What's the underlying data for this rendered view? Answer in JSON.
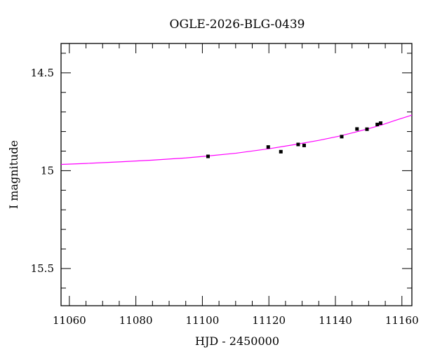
{
  "chart_data": {
    "type": "scatter",
    "title": "OGLE-2026-BLG-0439",
    "xlabel": "HJD - 2450000",
    "ylabel": "I magnitude",
    "xlim": [
      11057.5,
      11163
    ],
    "ylim": [
      15.69,
      14.35
    ],
    "y_inverted": true,
    "grid": false,
    "x_ticks": [
      11060,
      11080,
      11100,
      11120,
      11140,
      11160
    ],
    "x_tick_labels": [
      "11060",
      "11080",
      "11100",
      "11120",
      "11140",
      "11160"
    ],
    "y_ticks": [
      14.5,
      15,
      15.5
    ],
    "y_tick_labels": [
      "14.5",
      "15",
      "15.5"
    ],
    "series": [
      {
        "kind": "points",
        "color": "#000000",
        "x": [
          11101.7,
          11119.8,
          11123.6,
          11128.8,
          11130.6,
          11141.9,
          11146.5,
          11149.5,
          11152.6,
          11153.6
        ],
        "y": [
          14.927,
          14.879,
          14.903,
          14.866,
          14.871,
          14.826,
          14.787,
          14.788,
          14.764,
          14.757
        ]
      },
      {
        "kind": "model",
        "color": "#ff00ff",
        "x": [
          11057.5,
          11065,
          11075,
          11085,
          11095,
          11101,
          11110,
          11120,
          11128,
          11135,
          11141,
          11146,
          11150,
          11154,
          11158,
          11163
        ],
        "y": [
          14.968,
          14.963,
          14.955,
          14.946,
          14.935,
          14.926,
          14.911,
          14.888,
          14.866,
          14.845,
          14.824,
          14.803,
          14.785,
          14.766,
          14.743,
          14.716
        ]
      }
    ]
  }
}
